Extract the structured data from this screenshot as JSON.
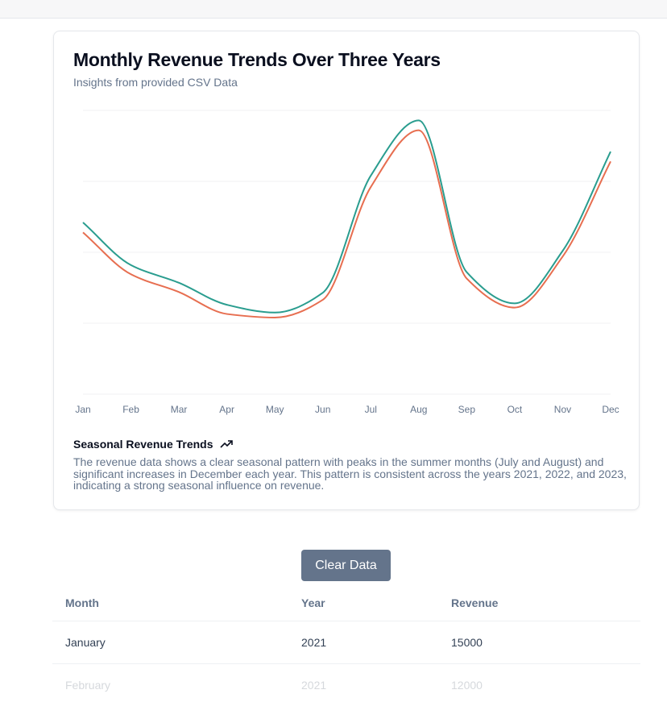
{
  "card": {
    "title": "Monthly Revenue Trends Over Three Years",
    "subtitle": "Insights from provided CSV Data",
    "footer_title": "Seasonal Revenue Trends",
    "footer_icon": "trending-up-icon",
    "footer_text": "The revenue data shows a clear seasonal pattern with peaks in the summer months (July and August) and significant increases in December each year. This pattern is consistent across the years 2021, 2022, and 2023, indicating a strong seasonal influence on revenue."
  },
  "chart_data": {
    "type": "line",
    "title": "Monthly Revenue Trends Over Three Years",
    "categories": [
      "Jan",
      "Feb",
      "Mar",
      "Apr",
      "May",
      "Jun",
      "Jul",
      "Aug",
      "Sep",
      "Oct",
      "Nov",
      "Dec"
    ],
    "series": [
      {
        "color": "#2a9d8f",
        "values": [
          24200,
          18200,
          15700,
          12600,
          11500,
          14300,
          30800,
          38600,
          17200,
          12800,
          20200,
          34200
        ]
      },
      {
        "color": "#e76e50",
        "values": [
          22800,
          16900,
          14400,
          11300,
          10800,
          13300,
          29200,
          37200,
          16300,
          12200,
          19400,
          32800
        ]
      }
    ],
    "ylim": [
      0,
      40000
    ],
    "y_axis_visible": false,
    "grid": "horizontal",
    "curve": "smooth",
    "legend": "none"
  },
  "actions": {
    "clear_label": "Clear Data"
  },
  "table": {
    "headers": [
      "Month",
      "Year",
      "Revenue"
    ],
    "rows": [
      [
        "January",
        "2021",
        "15000"
      ],
      [
        "February",
        "2021",
        "12000"
      ]
    ]
  }
}
